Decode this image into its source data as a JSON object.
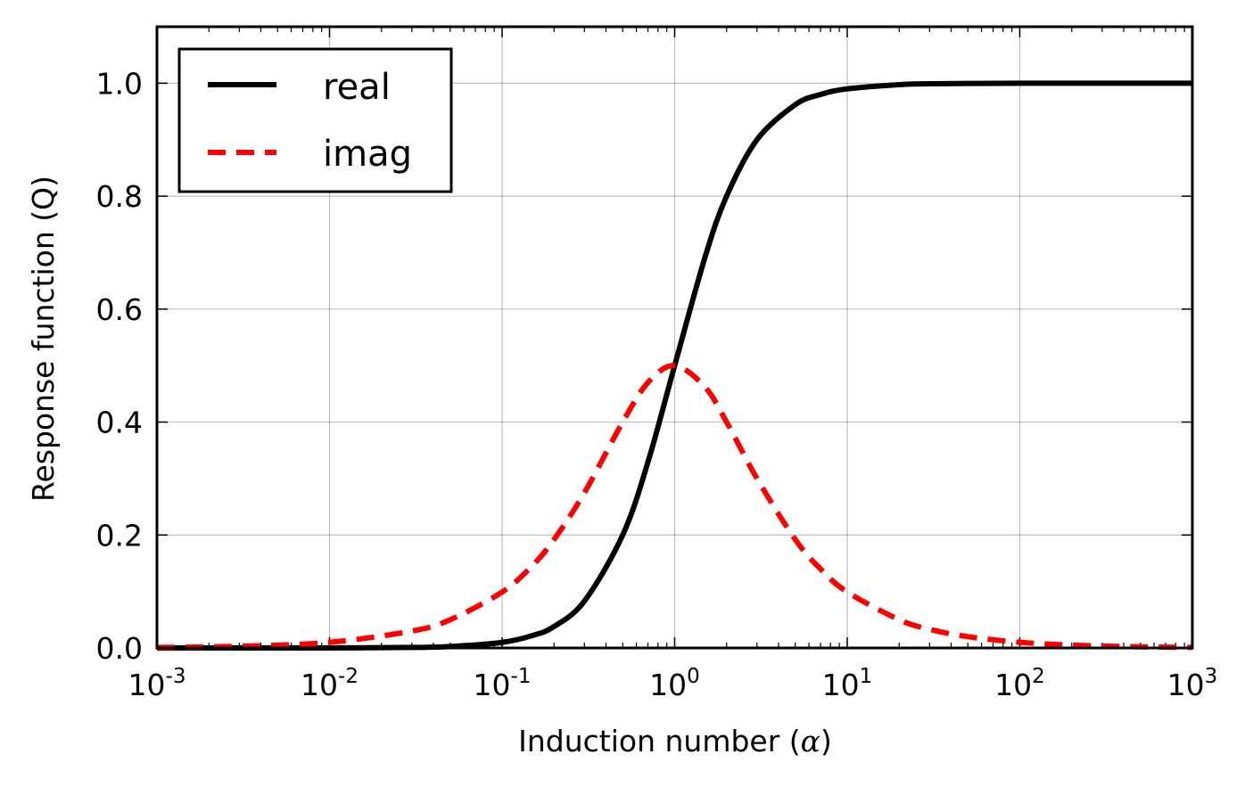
{
  "chart_data": {
    "type": "line",
    "xlabel": "Induction number (",
    "xlabel_symbol": "α",
    "xlabel_close": ")",
    "ylabel": "Response function (Q)",
    "xscale": "log",
    "xlim": [
      0.001,
      1000
    ],
    "ylim": [
      0.0,
      1.1
    ],
    "grid": true,
    "legend_position": "top-left",
    "x_ticks": [
      {
        "base": "10",
        "exp": "-3"
      },
      {
        "base": "10",
        "exp": "-2"
      },
      {
        "base": "10",
        "exp": "-1"
      },
      {
        "base": "10",
        "exp": "0"
      },
      {
        "base": "10",
        "exp": "1"
      },
      {
        "base": "10",
        "exp": "2"
      },
      {
        "base": "10",
        "exp": "3"
      }
    ],
    "y_ticks": [
      "0.0",
      "0.2",
      "0.4",
      "0.6",
      "0.8",
      "1.0"
    ],
    "x": [
      0.001,
      0.003,
      0.01,
      0.03,
      0.05,
      0.1,
      0.15,
      0.2,
      0.3,
      0.5,
      0.7,
      1,
      1.5,
      2,
      3,
      5,
      7,
      10,
      20,
      30,
      50,
      100,
      200,
      500,
      1000
    ],
    "series": [
      {
        "name": "real",
        "color": "#000000",
        "style": "solid",
        "values": [
          0.0,
          0.0,
          0.0001,
          0.0009,
          0.0025,
          0.0099,
          0.022,
          0.038,
          0.083,
          0.2,
          0.329,
          0.5,
          0.692,
          0.8,
          0.9,
          0.962,
          0.98,
          0.99,
          0.9975,
          0.9989,
          0.9996,
          0.9999,
          1.0,
          1.0,
          1.0
        ]
      },
      {
        "name": "imag",
        "color": "#ff0000",
        "style": "dashed",
        "values": [
          0.001,
          0.003,
          0.01,
          0.03,
          0.05,
          0.099,
          0.146,
          0.192,
          0.275,
          0.4,
          0.47,
          0.5,
          0.462,
          0.4,
          0.3,
          0.192,
          0.14,
          0.099,
          0.05,
          0.033,
          0.02,
          0.01,
          0.005,
          0.002,
          0.001
        ]
      }
    ]
  }
}
